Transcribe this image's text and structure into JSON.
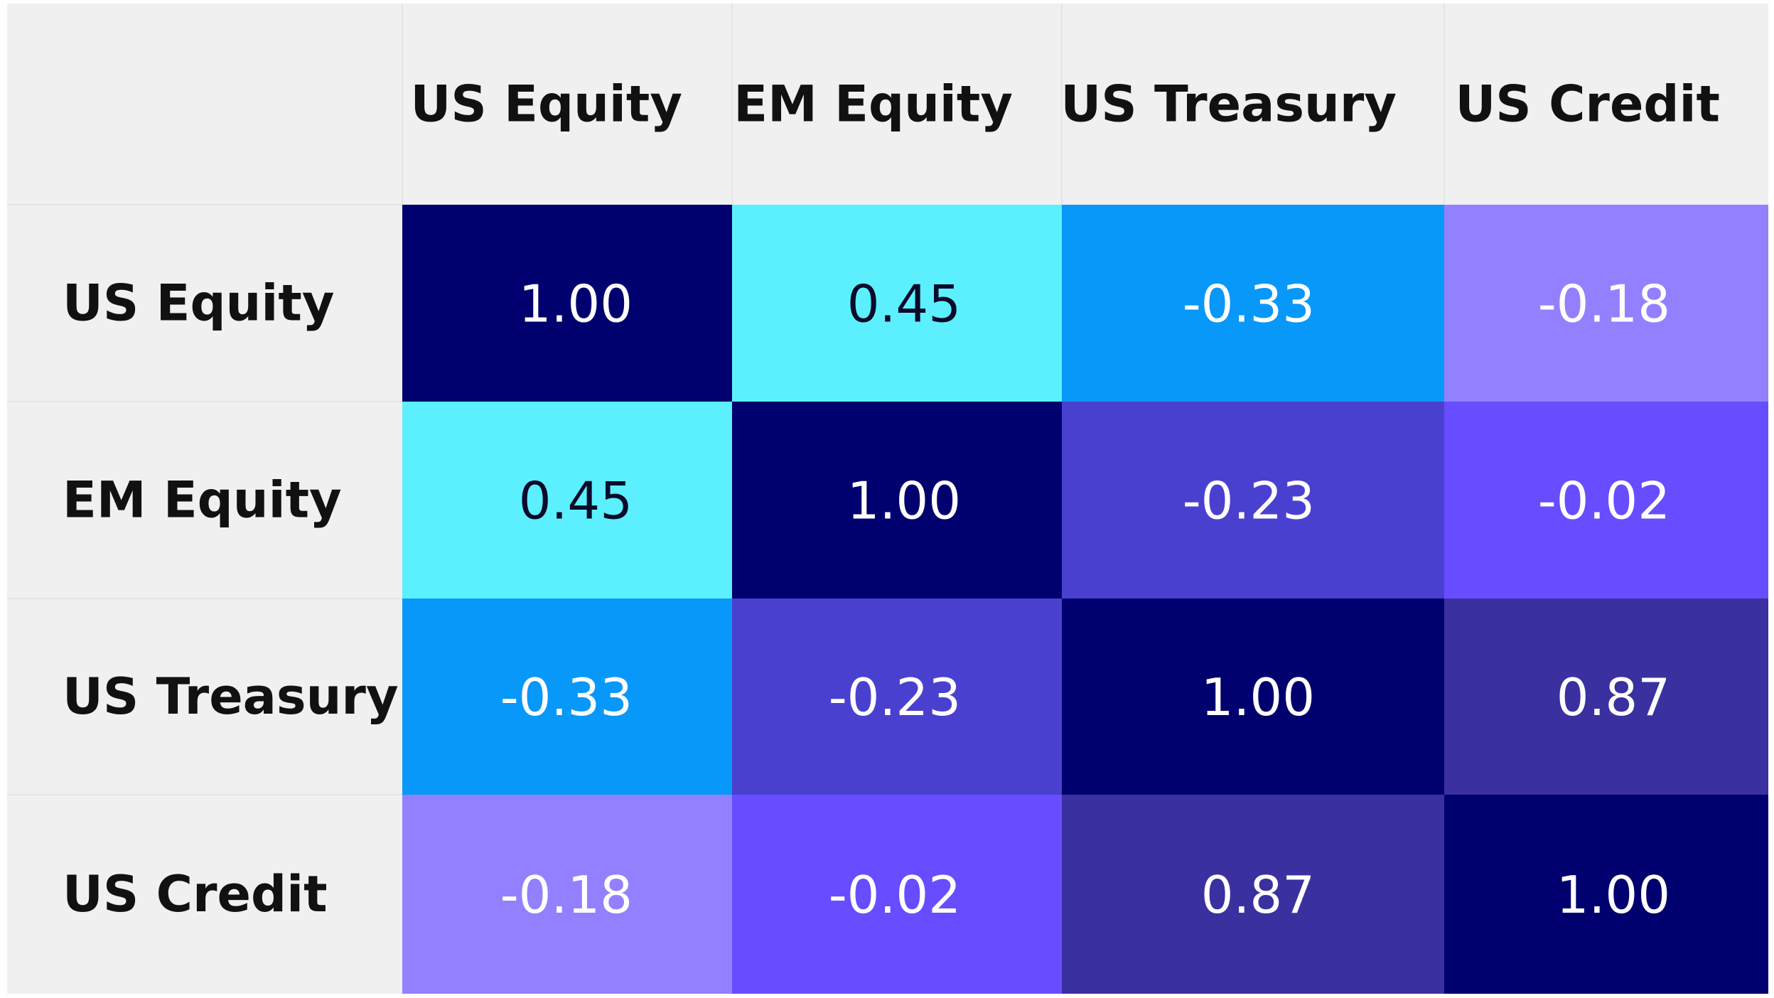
{
  "chart_data": {
    "type": "heatmap",
    "title": "",
    "row_labels": [
      "US Equity",
      "EM Equity",
      "US Treasury",
      "US Credit"
    ],
    "column_labels": [
      "US Equity",
      "EM Equity",
      "US Treasury",
      "US Credit"
    ],
    "values": [
      [
        1.0,
        0.45,
        -0.33,
        -0.18
      ],
      [
        0.45,
        1.0,
        -0.23,
        -0.02
      ],
      [
        -0.33,
        -0.23,
        1.0,
        0.87
      ],
      [
        -0.18,
        -0.02,
        0.87,
        1.0
      ]
    ],
    "display_values": [
      [
        "1.00",
        "0.45",
        "-0.33",
        "-0.18"
      ],
      [
        "0.45",
        "1.00",
        "-0.23",
        "-0.02"
      ],
      [
        "-0.33",
        "-0.23",
        "1.00",
        "0.87"
      ],
      [
        "-0.18",
        "-0.02",
        "0.87",
        "1.00"
      ]
    ]
  },
  "colors": {
    "header_bg": "#f0f0f0",
    "grid_line": "#e4e4e4",
    "label_text": "#111111",
    "dark_text": "#0a0a2a",
    "light_text": "#ffffff",
    "value_1_00": "#00006e",
    "value_0_87": "#3a30a0",
    "value_0_45": "#5cf0ff",
    "value_neg_0_02": "#664dff",
    "value_neg_0_18": "#9380ff",
    "value_neg_0_23": "#4a40d0",
    "value_neg_0_33": "#0898fa"
  }
}
